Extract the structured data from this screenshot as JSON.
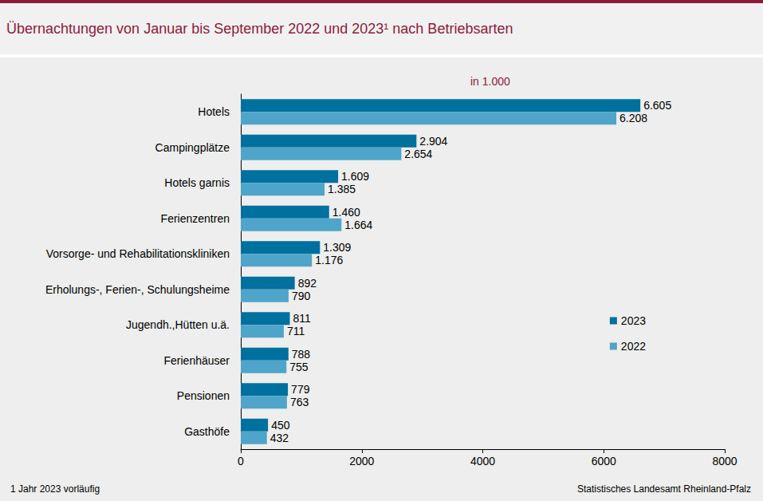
{
  "chart_data": {
    "type": "bar",
    "orientation": "horizontal",
    "title": "Übernachtungen von Januar bis September 2022 und 2023¹ nach Betriebsarten",
    "subtitle": "in 1.000",
    "footnote": "1 Jahr 2023 vorläufig",
    "source": "Statistisches Landesamt Rheinland-Pfalz",
    "categories": [
      "Hotels",
      "Campingplätze",
      "Hotels garnis",
      "Ferienzentren",
      "Vorsorge- und Rehabilitationskliniken",
      "Erholungs-, Ferien-, Schulungsheime",
      "Jugendh.,Hütten u.ä.",
      "Ferienhäuser",
      "Pensionen",
      "Gasthöfe"
    ],
    "series": [
      {
        "name": "2023",
        "color": "#00709f",
        "values": [
          6605,
          2904,
          1609,
          1460,
          1309,
          892,
          811,
          788,
          779,
          450
        ],
        "value_labels": [
          "6.605",
          "2.904",
          "1.609",
          "1.460",
          "1.309",
          "892",
          "811",
          "788",
          "779",
          "450"
        ]
      },
      {
        "name": "2022",
        "color": "#4fa5c9",
        "values": [
          6208,
          2654,
          1385,
          1664,
          1176,
          790,
          711,
          755,
          763,
          432
        ],
        "value_labels": [
          "6.208",
          "2.654",
          "1.385",
          "1.664",
          "1.176",
          "790",
          "711",
          "755",
          "763",
          "432"
        ]
      }
    ],
    "xlim": [
      0,
      8000
    ],
    "xticks": [
      0,
      2000,
      4000,
      6000,
      8000
    ],
    "data_labels": true,
    "legend": "right",
    "grid": false
  }
}
